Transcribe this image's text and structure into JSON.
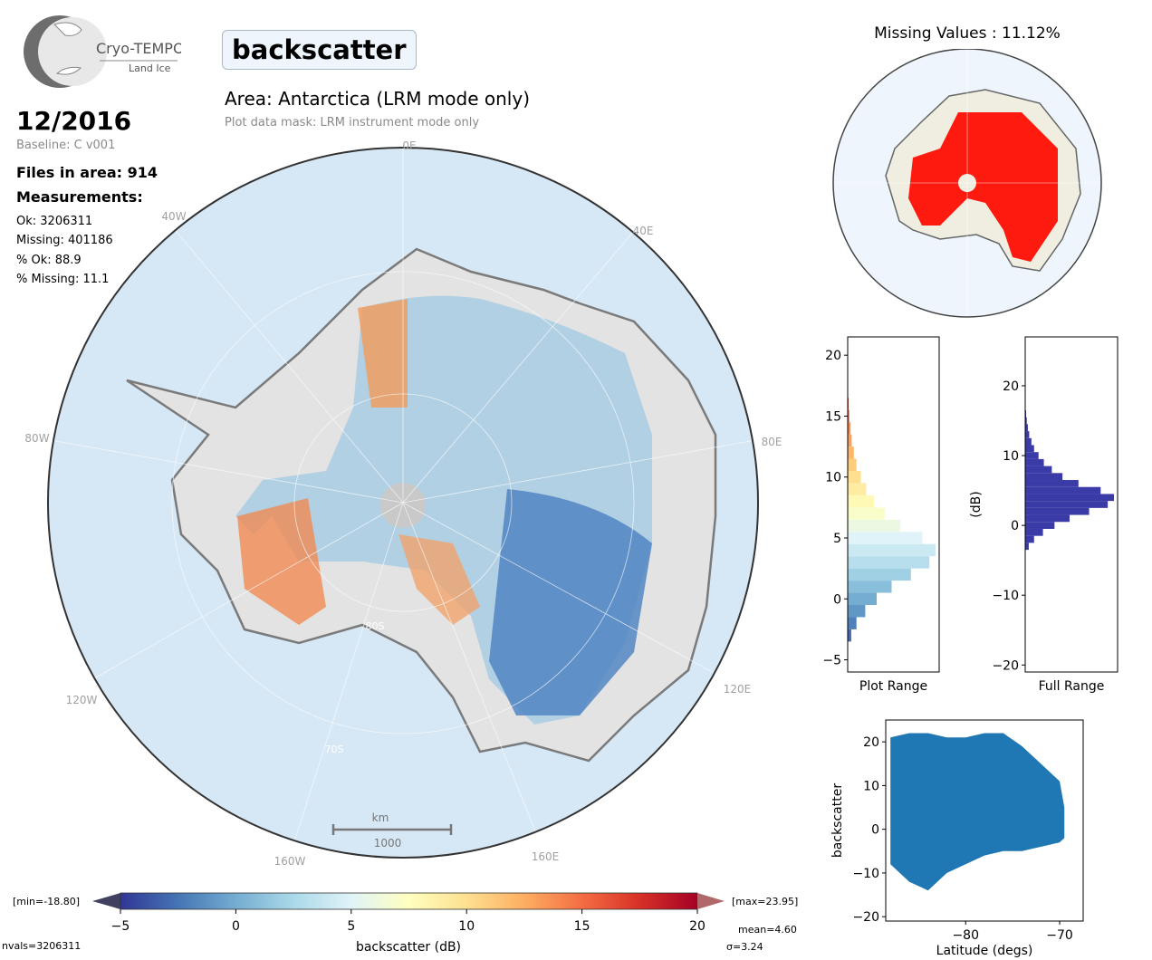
{
  "header": {
    "logo_name": "Cryo-TEMPO",
    "logo_sub": "Land Ice",
    "date": "12/2016",
    "baseline": "Baseline: C v001",
    "files": "Files in area: 914",
    "measurements_heading": "Measurements:",
    "stats": [
      "Ok: 3206311",
      "Missing: 401186",
      "% Ok: 88.9",
      "% Missing: 11.1"
    ],
    "title": "backscatter",
    "area": "Area: Antarctica (LRM mode only)",
    "mask": "Plot data mask: LRM instrument mode only"
  },
  "map": {
    "lon_labels": [
      "0E",
      "40E",
      "80E",
      "120E",
      "160E",
      "160W",
      "120W",
      "80W",
      "40W"
    ],
    "lat_labels": [
      "80S",
      "70S"
    ],
    "scalebar_unit": "km",
    "scalebar_value": "1000"
  },
  "colorbar": {
    "min_label": "[min=-18.80]",
    "max_label": "[max=23.95]",
    "ticks": [
      -5,
      0,
      5,
      10,
      15,
      20
    ],
    "label": "backscatter (dB)",
    "nvals": "nvals=3206311",
    "mean": "mean=4.60",
    "sigma": "σ=3.24",
    "colors": [
      "#313695",
      "#4575b4",
      "#74add1",
      "#abd9e9",
      "#e0f3f8",
      "#ffffbf",
      "#fee090",
      "#fdae61",
      "#f46d43",
      "#d73027",
      "#a50026"
    ]
  },
  "chart_data": [
    {
      "type": "area",
      "name": "missing-values-map",
      "title": "Missing Values : 11.12%"
    },
    {
      "type": "bar",
      "name": "plot-range-histogram",
      "xlabel": "Plot Range",
      "ylim": [
        -6,
        21.5
      ],
      "yticks": [
        -5,
        0,
        5,
        10,
        15,
        20
      ],
      "bins_center": [
        -3,
        -2,
        -1,
        0,
        1,
        2,
        3,
        4,
        5,
        6,
        7,
        8,
        9,
        10,
        11,
        12,
        13,
        14,
        15,
        16
      ],
      "relative_counts": [
        0.04,
        0.1,
        0.2,
        0.33,
        0.5,
        0.72,
        0.93,
        1.0,
        0.85,
        0.6,
        0.42,
        0.3,
        0.21,
        0.15,
        0.1,
        0.07,
        0.045,
        0.03,
        0.018,
        0.01
      ]
    },
    {
      "type": "bar",
      "name": "full-range-histogram",
      "xlabel": "Full Range",
      "ylabel": "(dB)",
      "ylim": [
        -21,
        27
      ],
      "yticks": [
        -20,
        -10,
        0,
        10,
        20
      ],
      "bins_center": [
        -3,
        -2,
        -1,
        0,
        1,
        2,
        3,
        4,
        5,
        6,
        7,
        8,
        9,
        10,
        11,
        12,
        13,
        14,
        15,
        16
      ],
      "relative_counts": [
        0.04,
        0.1,
        0.2,
        0.33,
        0.5,
        0.72,
        0.93,
        1.0,
        0.85,
        0.6,
        0.42,
        0.3,
        0.21,
        0.15,
        0.1,
        0.07,
        0.045,
        0.03,
        0.018,
        0.01
      ]
    },
    {
      "type": "scatter",
      "name": "latitude-scatter",
      "xlabel": "Latitude (degs)",
      "ylabel": "backscatter",
      "xlim": [
        -88.5,
        -67.5
      ],
      "ylim": [
        -21,
        25
      ],
      "xticks": [
        -80,
        -70
      ],
      "yticks": [
        -20,
        -10,
        0,
        10,
        20
      ],
      "envelope": {
        "x": [
          -88,
          -86,
          -84,
          -82,
          -80,
          -78,
          -76,
          -74,
          -72,
          -70,
          -69.5
        ],
        "y_max": [
          21,
          22,
          22,
          21,
          21,
          22,
          22,
          19,
          15,
          11,
          5
        ],
        "y_min": [
          -8,
          -12,
          -14,
          -10,
          -8,
          -6,
          -5,
          -5,
          -4,
          -3,
          -2
        ]
      }
    }
  ]
}
